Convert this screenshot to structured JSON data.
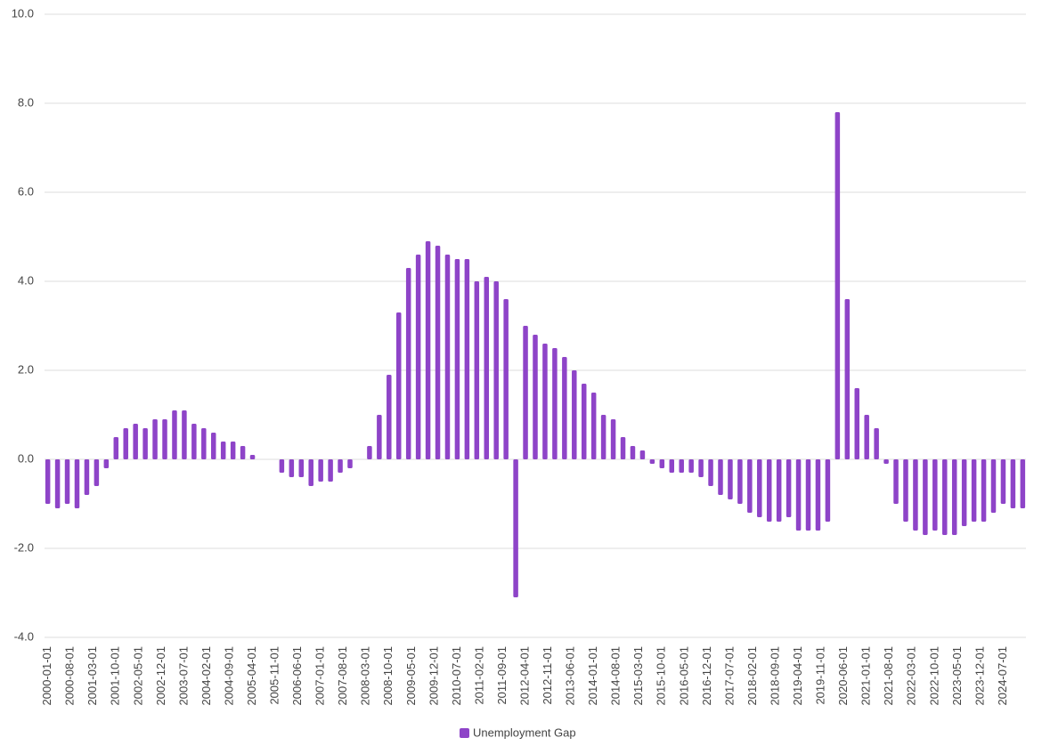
{
  "chart_data": {
    "type": "bar",
    "x": [
      "2000-01-01",
      "2000-04-01",
      "2000-07-01",
      "2000-10-01",
      "2001-01-01",
      "2001-04-01",
      "2001-07-01",
      "2001-10-01",
      "2002-01-01",
      "2002-04-01",
      "2002-07-01",
      "2002-10-01",
      "2003-01-01",
      "2003-04-01",
      "2003-07-01",
      "2003-10-01",
      "2004-01-01",
      "2004-04-01",
      "2004-07-01",
      "2004-10-01",
      "2005-01-01",
      "2005-04-01",
      "2005-07-01",
      "2005-10-01",
      "2006-01-01",
      "2006-04-01",
      "2006-07-01",
      "2006-10-01",
      "2007-01-01",
      "2007-04-01",
      "2007-07-01",
      "2007-10-01",
      "2008-01-01",
      "2008-04-01",
      "2008-07-01",
      "2008-10-01",
      "2009-01-01",
      "2009-04-01",
      "2009-07-01",
      "2009-10-01",
      "2010-01-01",
      "2010-04-01",
      "2010-07-01",
      "2010-10-01",
      "2011-01-01",
      "2011-04-01",
      "2011-07-01",
      "2011-10-01",
      "2012-01-01",
      "2012-04-01",
      "2012-07-01",
      "2012-10-01",
      "2013-01-01",
      "2013-04-01",
      "2013-07-01",
      "2013-10-01",
      "2014-01-01",
      "2014-04-01",
      "2014-07-01",
      "2014-10-01",
      "2015-01-01",
      "2015-04-01",
      "2015-07-01",
      "2015-10-01",
      "2016-01-01",
      "2016-04-01",
      "2016-07-01",
      "2016-10-01",
      "2017-01-01",
      "2017-04-01",
      "2017-07-01",
      "2017-10-01",
      "2018-01-01",
      "2018-04-01",
      "2018-07-01",
      "2018-10-01",
      "2019-01-01",
      "2019-04-01",
      "2019-07-01",
      "2019-10-01",
      "2020-01-01",
      "2020-04-01",
      "2020-07-01",
      "2020-10-01",
      "2021-01-01",
      "2021-04-01",
      "2021-07-01",
      "2021-10-01",
      "2022-01-01",
      "2022-04-01",
      "2022-07-01",
      "2022-10-01",
      "2023-01-01",
      "2023-04-01",
      "2023-07-01",
      "2023-10-01",
      "2024-01-01",
      "2024-04-01",
      "2024-07-01",
      "2024-10-01",
      "2025-01-01"
    ],
    "series": [
      {
        "name": "Unemployment Gap",
        "color": "#8e44c8",
        "values": [
          -1.0,
          -1.1,
          -1.0,
          -1.1,
          -0.8,
          -0.6,
          -0.2,
          0.5,
          0.7,
          0.8,
          0.7,
          0.9,
          0.9,
          1.1,
          1.1,
          0.8,
          0.7,
          0.6,
          0.4,
          0.4,
          0.3,
          0.1,
          0,
          0,
          -0.3,
          -0.4,
          -0.4,
          -0.6,
          -0.5,
          -0.5,
          -0.3,
          -0.2,
          0,
          0.3,
          1.0,
          1.9,
          3.3,
          4.3,
          4.6,
          4.9,
          4.8,
          4.6,
          4.5,
          4.5,
          4.0,
          4.1,
          4.0,
          3.6,
          -3.1,
          3.0,
          2.8,
          2.6,
          2.5,
          2.3,
          2.0,
          1.7,
          1.5,
          1.0,
          0.9,
          0.5,
          0.3,
          0.2,
          -0.1,
          -0.2,
          -0.3,
          -0.3,
          -0.3,
          -0.4,
          -0.6,
          -0.8,
          -0.9,
          -1.0,
          -1.2,
          -1.3,
          -1.4,
          -1.4,
          -1.3,
          -1.6,
          -1.6,
          -1.6,
          -1.4,
          7.8,
          3.6,
          1.6,
          1.0,
          0.7,
          -0.1,
          -1.0,
          -1.4,
          -1.6,
          -1.7,
          -1.6,
          -1.7,
          -1.7,
          -1.5,
          -1.4,
          -1.4,
          -1.2,
          -1.0,
          -1.1,
          -1.1
        ]
      }
    ],
    "xlim": [
      "1999-12-01",
      "2025-02-01"
    ],
    "xticks": [
      "2000-01-01",
      "2000-08-01",
      "2001-03-01",
      "2001-10-01",
      "2002-05-01",
      "2002-12-01",
      "2003-07-01",
      "2004-02-01",
      "2004-09-01",
      "2005-04-01",
      "2005-11-01",
      "2006-06-01",
      "2007-01-01",
      "2007-08-01",
      "2008-03-01",
      "2008-10-01",
      "2009-05-01",
      "2009-12-01",
      "2010-07-01",
      "2011-02-01",
      "2011-09-01",
      "2012-04-01",
      "2012-11-01",
      "2013-06-01",
      "2014-01-01",
      "2014-08-01",
      "2015-03-01",
      "2015-10-01",
      "2016-05-01",
      "2016-12-01",
      "2017-07-01",
      "2018-02-01",
      "2018-09-01",
      "2019-04-01",
      "2019-11-01",
      "2020-06-01",
      "2021-01-01",
      "2021-08-01",
      "2022-03-01",
      "2022-10-01",
      "2023-05-01",
      "2023-12-01",
      "2024-07-01"
    ],
    "ylim": [
      -4,
      10
    ],
    "yticks": [
      {
        "value": -4,
        "label": "-4.0"
      },
      {
        "value": -2,
        "label": "-2.0"
      },
      {
        "value": 0,
        "label": "0.0"
      },
      {
        "value": 2,
        "label": "2.0"
      },
      {
        "value": 4,
        "label": "4.0"
      },
      {
        "value": 6,
        "label": "6.0"
      },
      {
        "value": 8,
        "label": "8.0"
      },
      {
        "value": 10,
        "label": "10.0"
      }
    ],
    "grid": true,
    "legend": "bottom"
  }
}
